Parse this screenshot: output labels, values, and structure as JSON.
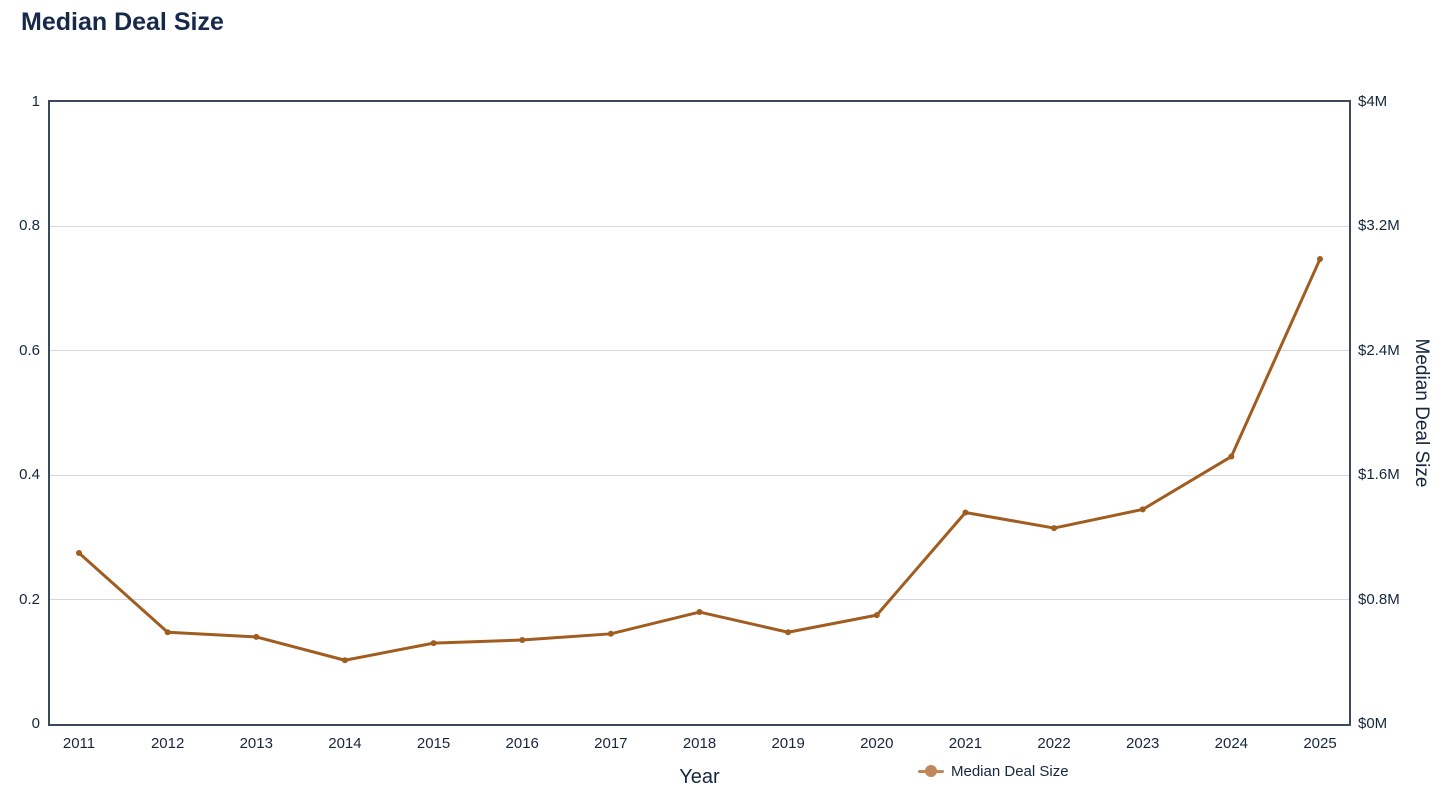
{
  "page": {
    "title": "Median Deal Size"
  },
  "chart_data": {
    "type": "line",
    "title": "Median Deal Size",
    "xlabel": "Year",
    "ylabel_right": "Median Deal Size",
    "x": [
      "2011",
      "2012",
      "2013",
      "2014",
      "2015",
      "2016",
      "2017",
      "2018",
      "2019",
      "2020",
      "2021",
      "2022",
      "2023",
      "2024",
      "2025"
    ],
    "series": [
      {
        "name": "Median Deal Size",
        "values_musd": [
          1.1,
          0.59,
          0.56,
          0.41,
          0.52,
          0.54,
          0.58,
          0.72,
          0.59,
          0.7,
          1.36,
          1.26,
          1.38,
          1.72,
          2.99
        ]
      }
    ],
    "left_axis": {
      "range": [
        0,
        1
      ],
      "tick_labels": [
        "0",
        "0.2",
        "0.4",
        "0.6",
        "0.8",
        "1"
      ],
      "tick_values": [
        0,
        0.2,
        0.4,
        0.6,
        0.8,
        1
      ]
    },
    "right_axis": {
      "range_musd": [
        0,
        4
      ],
      "tick_labels": [
        "$0M",
        "$0.8M",
        "$1.6M",
        "$2.4M",
        "$3.2M",
        "$4M"
      ],
      "tick_values_musd": [
        0,
        0.8,
        1.6,
        2.4,
        3.2,
        4
      ]
    },
    "legend": {
      "position": "bottom",
      "items": [
        {
          "label": "Median Deal Size",
          "marker_color": "#C0875A",
          "line_color": "#A15C20"
        }
      ]
    },
    "grid": "horizontal",
    "colors": {
      "line": "#A15C20",
      "marker": "#A15C20",
      "legend_marker": "#C0875A",
      "title": "#16294B",
      "axis_text": "#16263E",
      "grid": "#D6D6D6",
      "axis_line": "#3A4A5A",
      "background": "#FFFFFF"
    }
  }
}
